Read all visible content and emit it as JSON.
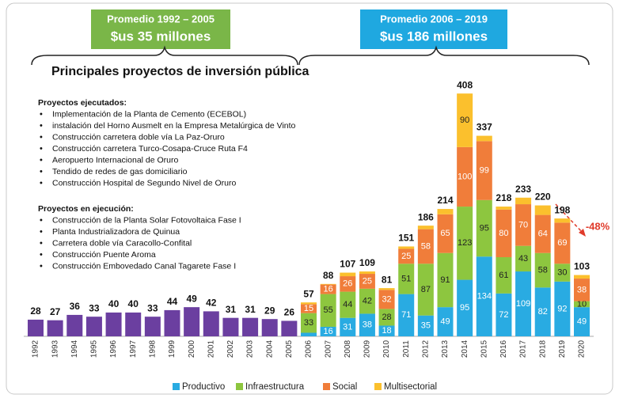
{
  "header": {
    "left": {
      "title": "Promedio 1992 – 2005",
      "value": "$us 35 millones"
    },
    "right": {
      "title": "Promedio 2006 – 2019",
      "value": "$us 186 millones"
    }
  },
  "title": "Principales proyectos de inversión pública",
  "executed": {
    "heading": "Proyectos ejecutados:",
    "items": [
      "Implementación de la Planta de Cemento (ECEBOL)",
      "instalación del Horno Ausmelt en la Empresa Metalúrgica de Vinto",
      "Construcción carretera doble vía La Paz-Oruro",
      "Construcción carretera Turco-Cosapa-Cruce Ruta F4",
      "Aeropuerto Internacional de Oruro",
      "Tendido de redes de gas domiciliario",
      "Construcción Hospital de Segundo Nivel de Oruro"
    ]
  },
  "ongoing": {
    "heading": "Proyectos en ejecución:",
    "items": [
      "Construcción de la Planta Solar Fotovoltaica Fase I",
      "Planta Industrializadora de Quinua",
      "Carretera doble vía Caracollo-Confital",
      "Construcción Puente Aroma",
      "Construcción Embovedado Canal Tagarete Fase I"
    ]
  },
  "chart_data": {
    "type": "bar",
    "stacked": true,
    "categories": [
      "1992",
      "1993",
      "1994",
      "1995",
      "1996",
      "1997",
      "1998",
      "1999",
      "2000",
      "2001",
      "2002",
      "2003",
      "2004",
      "2005",
      "2006",
      "2007",
      "2008",
      "2009",
      "2010",
      "2011",
      "2012",
      "2013",
      "2014",
      "2015",
      "2016",
      "2017",
      "2018",
      "2019",
      "2020"
    ],
    "historic": {
      "color": "#6b3fa0",
      "values": [
        28,
        27,
        36,
        33,
        40,
        40,
        33,
        44,
        49,
        42,
        31,
        31,
        29,
        26,
        null,
        null,
        null,
        null,
        null,
        null,
        null,
        null,
        null,
        null,
        null,
        null,
        null,
        null,
        null
      ]
    },
    "series": [
      {
        "name": "Productivo",
        "color": "#29abe2",
        "values": [
          null,
          null,
          null,
          null,
          null,
          null,
          null,
          null,
          null,
          null,
          null,
          null,
          null,
          null,
          6,
          16,
          31,
          38,
          18,
          71,
          35,
          49,
          95,
          134,
          72,
          109,
          82,
          92,
          49
        ]
      },
      {
        "name": "Infraestructura",
        "color": "#8dc63f",
        "values": [
          null,
          null,
          null,
          null,
          null,
          null,
          null,
          null,
          null,
          null,
          null,
          null,
          null,
          null,
          33,
          55,
          44,
          42,
          28,
          51,
          87,
          91,
          123,
          95,
          61,
          43,
          58,
          30,
          10
        ]
      },
      {
        "name": "Social",
        "color": "#f07d3a",
        "values": [
          null,
          null,
          null,
          null,
          null,
          null,
          null,
          null,
          null,
          null,
          null,
          null,
          null,
          null,
          15,
          16,
          26,
          25,
          32,
          25,
          58,
          65,
          100,
          99,
          80,
          70,
          64,
          69,
          38
        ]
      },
      {
        "name": "Multisectorial",
        "color": "#fbc02d",
        "values": [
          null,
          null,
          null,
          null,
          null,
          null,
          null,
          null,
          null,
          null,
          null,
          null,
          null,
          null,
          3,
          1,
          6,
          4,
          3,
          4,
          6,
          9,
          90,
          9,
          5,
          11,
          16,
          7,
          6
        ]
      }
    ],
    "totals": [
      null,
      null,
      null,
      null,
      null,
      null,
      null,
      null,
      null,
      null,
      null,
      null,
      null,
      null,
      57,
      88,
      107,
      109,
      81,
      151,
      186,
      214,
      408,
      337,
      218,
      233,
      220,
      198,
      103
    ],
    "ylim": [
      0,
      420
    ],
    "annotation": "-48%"
  }
}
